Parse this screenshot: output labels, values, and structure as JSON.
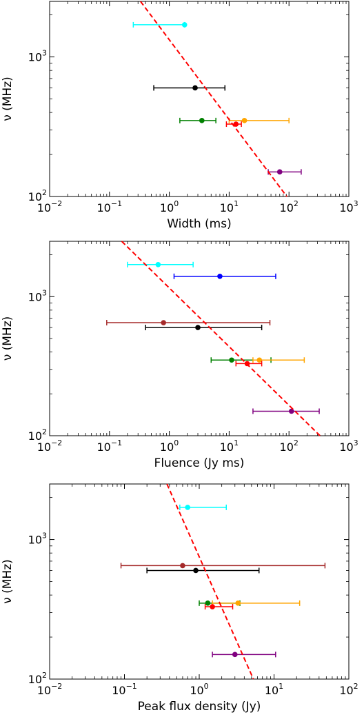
{
  "chart_data": [
    {
      "type": "scatter",
      "title": "",
      "xlabel": "Width (ms)",
      "ylabel": "ν (MHz)",
      "xscale": "log",
      "yscale": "log",
      "xlim": [
        0.01,
        1000
      ],
      "ylim": [
        100,
        2500
      ],
      "x_ticks": [
        {
          "value": 0.01,
          "base": "10",
          "exp": "−2"
        },
        {
          "value": 0.1,
          "base": "10",
          "exp": "−1"
        },
        {
          "value": 1,
          "base": "10",
          "exp": "0"
        },
        {
          "value": 10,
          "base": "10",
          "exp": "1"
        },
        {
          "value": 100,
          "base": "10",
          "exp": "2"
        },
        {
          "value": 1000,
          "base": "10",
          "exp": "3"
        }
      ],
      "y_ticks": [
        {
          "value": 100,
          "base": "10",
          "exp": "2"
        },
        {
          "value": 1000,
          "base": "10",
          "exp": "3"
        }
      ],
      "points": [
        {
          "color": "#00ffff",
          "x": 1.8,
          "xlow": 0.25,
          "xhigh": 1.8,
          "y": 1700
        },
        {
          "color": "#000000",
          "x": 2.7,
          "xlow": 0.55,
          "xhigh": 8.5,
          "y": 600
        },
        {
          "color": "#008000",
          "x": 3.5,
          "xlow": 1.5,
          "xhigh": 6.0,
          "y": 350
        },
        {
          "color": "#ffa500",
          "x": 18,
          "xlow": 10,
          "xhigh": 100,
          "y": 350
        },
        {
          "color": "#ff0000",
          "x": 13,
          "xlow": 9,
          "xhigh": 16,
          "y": 330
        },
        {
          "color": "#800080",
          "x": 70,
          "xlow": 45,
          "xhigh": 160,
          "y": 150
        }
      ],
      "fit_line": {
        "color": "#ff0000",
        "x1": 0.33,
        "y1": 2500,
        "x2": 92,
        "y2": 100
      }
    },
    {
      "type": "scatter",
      "title": "",
      "xlabel": "Fluence (Jy ms)",
      "ylabel": "ν (MHz)",
      "xscale": "log",
      "yscale": "log",
      "xlim": [
        0.01,
        1000
      ],
      "ylim": [
        100,
        2500
      ],
      "x_ticks": [
        {
          "value": 0.01,
          "base": "10",
          "exp": "−2"
        },
        {
          "value": 0.1,
          "base": "10",
          "exp": "−1"
        },
        {
          "value": 1,
          "base": "10",
          "exp": "0"
        },
        {
          "value": 10,
          "base": "10",
          "exp": "1"
        },
        {
          "value": 100,
          "base": "10",
          "exp": "2"
        },
        {
          "value": 1000,
          "base": "10",
          "exp": "3"
        }
      ],
      "y_ticks": [
        {
          "value": 100,
          "base": "10",
          "exp": "2"
        },
        {
          "value": 1000,
          "base": "10",
          "exp": "3"
        }
      ],
      "points": [
        {
          "color": "#00ffff",
          "x": 0.65,
          "xlow": 0.2,
          "xhigh": 2.5,
          "y": 1700
        },
        {
          "color": "#0000ff",
          "x": 7,
          "xlow": 1.2,
          "xhigh": 60,
          "y": 1400
        },
        {
          "color": "#a52a2a",
          "x": 0.8,
          "xlow": 0.09,
          "xhigh": 48,
          "y": 650
        },
        {
          "color": "#000000",
          "x": 3,
          "xlow": 0.4,
          "xhigh": 35,
          "y": 600
        },
        {
          "color": "#008000",
          "x": 11,
          "xlow": 5,
          "xhigh": 50,
          "y": 350
        },
        {
          "color": "#ffa500",
          "x": 32,
          "xlow": 25,
          "xhigh": 180,
          "y": 350
        },
        {
          "color": "#ff0000",
          "x": 20,
          "xlow": 13,
          "xhigh": 35,
          "y": 330
        },
        {
          "color": "#800080",
          "x": 110,
          "xlow": 25,
          "xhigh": 320,
          "y": 150
        }
      ],
      "fit_line": {
        "color": "#ff0000",
        "x1": 0.16,
        "y1": 2500,
        "x2": 330,
        "y2": 100
      }
    },
    {
      "type": "scatter",
      "title": "",
      "xlabel": "Peak flux density (Jy)",
      "ylabel": "ν (MHz)",
      "xscale": "log",
      "yscale": "log",
      "xlim": [
        0.01,
        100
      ],
      "ylim": [
        100,
        2500
      ],
      "x_ticks": [
        {
          "value": 0.01,
          "base": "10",
          "exp": "−2"
        },
        {
          "value": 0.1,
          "base": "10",
          "exp": "−1"
        },
        {
          "value": 1,
          "base": "10",
          "exp": "0"
        },
        {
          "value": 10,
          "base": "10",
          "exp": "1"
        },
        {
          "value": 100,
          "base": "10",
          "exp": "2"
        }
      ],
      "y_ticks": [
        {
          "value": 100,
          "base": "10",
          "exp": "2"
        },
        {
          "value": 1000,
          "base": "10",
          "exp": "3"
        }
      ],
      "points": [
        {
          "color": "#00ffff",
          "x": 0.7,
          "xlow": 0.55,
          "xhigh": 2.3,
          "y": 1700
        },
        {
          "color": "#a52a2a",
          "x": 0.6,
          "xlow": 0.09,
          "xhigh": 48,
          "y": 650
        },
        {
          "color": "#000000",
          "x": 0.9,
          "xlow": 0.2,
          "xhigh": 6.3,
          "y": 600
        },
        {
          "color": "#008000",
          "x": 1.3,
          "xlow": 1.0,
          "xhigh": 3.5,
          "y": 350
        },
        {
          "color": "#ffa500",
          "x": 3.3,
          "xlow": 1.5,
          "xhigh": 22,
          "y": 350
        },
        {
          "color": "#ff0000",
          "x": 1.5,
          "xlow": 1.2,
          "xhigh": 2.8,
          "y": 330
        },
        {
          "color": "#800080",
          "x": 3.0,
          "xlow": 1.5,
          "xhigh": 10.5,
          "y": 150
        }
      ],
      "fit_line": {
        "color": "#ff0000",
        "x1": 0.37,
        "y1": 2500,
        "x2": 5.3,
        "y2": 100
      }
    }
  ]
}
